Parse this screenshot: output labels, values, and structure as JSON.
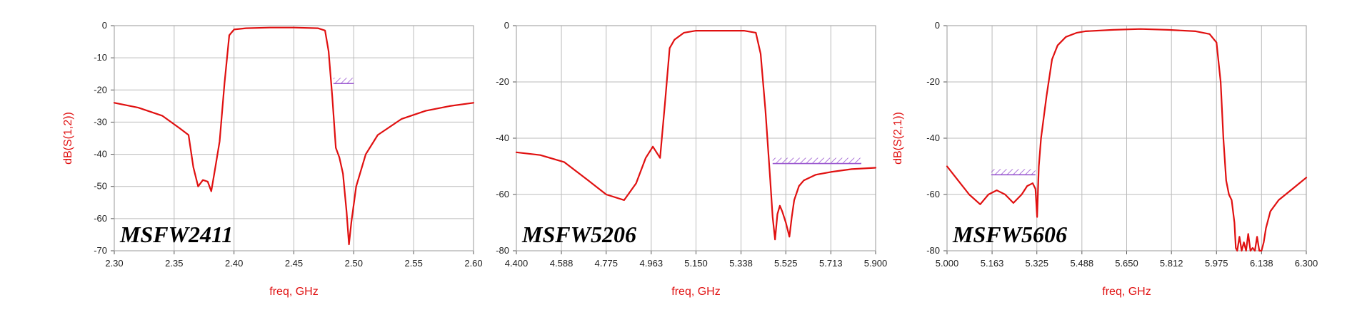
{
  "colors": {
    "trace": "#e01010",
    "mask": "#9b59d0",
    "grid": "#bbbbbb"
  },
  "chart_data": [
    {
      "type": "line",
      "model": "MSFW2411",
      "xlabel": "freq, GHz",
      "ylabel": "dB(S(1,2))",
      "xlim": [
        2.3,
        2.6
      ],
      "ylim": [
        -70,
        0
      ],
      "xticks": [
        "2.30",
        "2.35",
        "2.40",
        "2.45",
        "2.50",
        "2.55",
        "2.60"
      ],
      "yticks": [
        "0",
        "-10",
        "-20",
        "-30",
        "-40",
        "-50",
        "-60",
        "-70"
      ],
      "grid": true,
      "mask": {
        "x": [
          2.483,
          2.5
        ],
        "y": -18
      },
      "series": [
        {
          "x": [
            2.3,
            2.32,
            2.34,
            2.355,
            2.362,
            2.366,
            2.37,
            2.374,
            2.378,
            2.381,
            2.384,
            2.388,
            2.392,
            2.396,
            2.4,
            2.41,
            2.43,
            2.45,
            2.47,
            2.476,
            2.479,
            2.482,
            2.485,
            2.488,
            2.491,
            2.494,
            2.496,
            2.498,
            2.502,
            2.51,
            2.52,
            2.54,
            2.56,
            2.58,
            2.6
          ],
          "y": [
            -24,
            -25.5,
            -28,
            -32,
            -34,
            -44,
            -50,
            -48,
            -48.5,
            -51.5,
            -45,
            -36,
            -18,
            -3,
            -1.2,
            -0.8,
            -0.6,
            -0.6,
            -0.8,
            -1.5,
            -8,
            -22,
            -38,
            -41,
            -46,
            -58,
            -68,
            -61,
            -50,
            -40,
            -34,
            -29,
            -26.5,
            -25,
            -24
          ]
        }
      ]
    },
    {
      "type": "line",
      "model": "MSFW5206",
      "xlabel": "freq, GHz",
      "ylabel": "",
      "xlim": [
        4.4,
        5.9
      ],
      "ylim": [
        -80,
        0
      ],
      "xticks": [
        "4.400",
        "4.588",
        "4.775",
        "4.963",
        "5.150",
        "5.338",
        "5.525",
        "5.713",
        "5.900"
      ],
      "yticks": [
        "0",
        "-20",
        "-40",
        "-60",
        "-80"
      ],
      "grid": true,
      "mask": {
        "x": [
          5.47,
          5.84
        ],
        "y": -49
      },
      "series": [
        {
          "x": [
            4.4,
            4.5,
            4.6,
            4.7,
            4.775,
            4.85,
            4.9,
            4.94,
            4.97,
            5.0,
            5.02,
            5.04,
            5.06,
            5.1,
            5.15,
            5.25,
            5.35,
            5.4,
            5.42,
            5.44,
            5.46,
            5.47,
            5.48,
            5.49,
            5.5,
            5.51,
            5.525,
            5.54,
            5.55,
            5.56,
            5.58,
            5.6,
            5.65,
            5.713,
            5.8,
            5.9
          ],
          "y": [
            -45,
            -46,
            -48.5,
            -55,
            -60,
            -62,
            -56,
            -47,
            -43,
            -47,
            -28,
            -8,
            -5,
            -2.5,
            -1.8,
            -1.8,
            -1.8,
            -2.5,
            -10,
            -30,
            -55,
            -68,
            -76,
            -67,
            -64,
            -66,
            -70,
            -75,
            -68,
            -62,
            -57,
            -55,
            -53,
            -52,
            -51,
            -50.5
          ]
        }
      ]
    },
    {
      "type": "line",
      "model": "MSFW5606",
      "xlabel": "freq, GHz",
      "ylabel": "dB(S(2,1))",
      "xlim": [
        5.0,
        6.3
      ],
      "ylim": [
        -80,
        0
      ],
      "xticks": [
        "5.000",
        "5.163",
        "5.325",
        "5.488",
        "5.650",
        "5.812",
        "5.975",
        "6.138",
        "6.300"
      ],
      "yticks": [
        "0",
        "-20",
        "-40",
        "-60",
        "-80"
      ],
      "grid": true,
      "mask": {
        "x": [
          5.16,
          5.32
        ],
        "y": -53
      },
      "series": [
        {
          "x": [
            5.0,
            5.04,
            5.08,
            5.12,
            5.15,
            5.18,
            5.21,
            5.24,
            5.27,
            5.29,
            5.31,
            5.32,
            5.326,
            5.332,
            5.34,
            5.36,
            5.38,
            5.4,
            5.43,
            5.47,
            5.5,
            5.6,
            5.7,
            5.8,
            5.9,
            5.95,
            5.975,
            5.99,
            6.0,
            6.01,
            6.02,
            6.03,
            6.04,
            6.045,
            6.05,
            6.058,
            6.066,
            6.074,
            6.082,
            6.09,
            6.098,
            6.106,
            6.114,
            6.122,
            6.13,
            6.138,
            6.146,
            6.154,
            6.17,
            6.2,
            6.25,
            6.3
          ],
          "y": [
            -50,
            -55,
            -60,
            -63.5,
            -60,
            -58.5,
            -60,
            -63,
            -60,
            -57,
            -56,
            -58,
            -68,
            -50,
            -40,
            -25,
            -12,
            -7,
            -4,
            -2.5,
            -2,
            -1.5,
            -1.2,
            -1.5,
            -2,
            -3,
            -6,
            -20,
            -40,
            -55,
            -60,
            -62,
            -70,
            -79,
            -80,
            -75,
            -80,
            -77,
            -80,
            -74,
            -80,
            -79,
            -80,
            -75,
            -80,
            -80,
            -77,
            -72,
            -66,
            -62,
            -58,
            -54
          ]
        }
      ]
    }
  ]
}
